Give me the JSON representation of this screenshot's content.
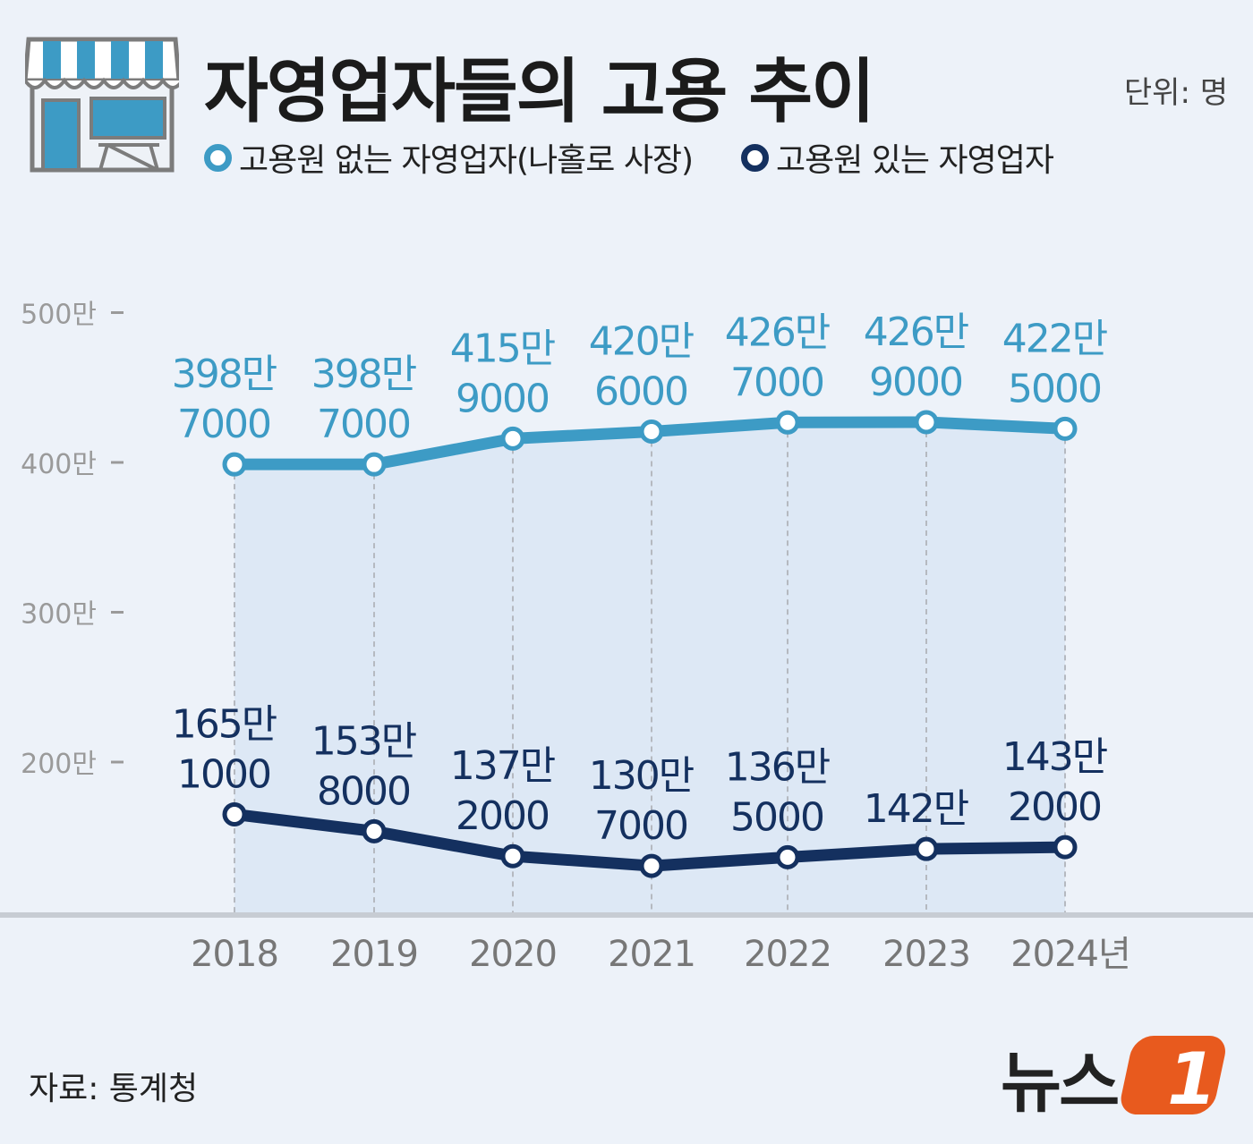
{
  "header": {
    "title": "자영업자들의 고용 추이",
    "unit": "단위: 명"
  },
  "legend": [
    {
      "label": "고용원 없는 자영업자(나홀로 사장)",
      "color": "#3d9bc5"
    },
    {
      "label": "고용원 있는 자영업자",
      "color": "#14305f"
    }
  ],
  "footer": {
    "source": "자료: 통계청",
    "logo_text": "뉴스",
    "logo_mark": "1"
  },
  "colors": {
    "series_light": "#3d9bc5",
    "series_dark": "#14305f",
    "area_fill": "#dde8f5",
    "axis_text": "#9a9a9a",
    "logo_orange": "#e85a1e"
  },
  "icons": {
    "store": "store-awning-icon"
  },
  "chart_data": {
    "type": "line",
    "x": [
      2018,
      2019,
      2020,
      2021,
      2022,
      2023,
      2024
    ],
    "x_tick_labels": [
      "2018",
      "2019",
      "2020",
      "2021",
      "2022",
      "2023",
      "2024년"
    ],
    "y_ticks": [
      200,
      300,
      400,
      500
    ],
    "y_tick_labels": [
      "200만",
      "300만",
      "400만",
      "500만"
    ],
    "ylim": [
      100,
      500
    ],
    "grid": false,
    "legend_position": "top-left",
    "series": [
      {
        "name": "고용원 없는 자영업자(나홀로 사장)",
        "values": [
          398.7,
          398.7,
          415.9,
          420.6,
          426.7,
          426.9,
          422.5
        ],
        "labels": [
          [
            "398만",
            "7000"
          ],
          [
            "398만",
            "7000"
          ],
          [
            "415만",
            "9000"
          ],
          [
            "420만",
            "6000"
          ],
          [
            "426만",
            "7000"
          ],
          [
            "426만",
            "9000"
          ],
          [
            "422만",
            "5000"
          ]
        ]
      },
      {
        "name": "고용원 있는 자영업자",
        "values": [
          165.1,
          153.8,
          137.2,
          130.7,
          136.5,
          142.0,
          143.2
        ],
        "labels": [
          [
            "165만",
            "1000"
          ],
          [
            "153만",
            "8000"
          ],
          [
            "137만",
            "2000"
          ],
          [
            "130만",
            "7000"
          ],
          [
            "136만",
            "5000"
          ],
          [
            "142만"
          ],
          [
            "143만",
            "2000"
          ]
        ]
      }
    ]
  }
}
